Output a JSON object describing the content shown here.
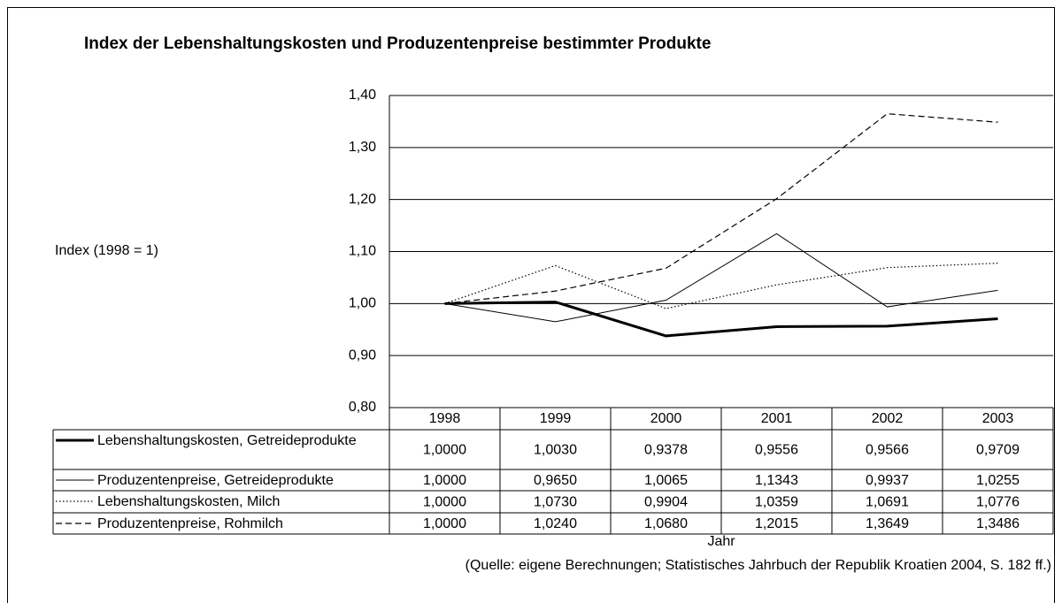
{
  "chart_data": {
    "type": "line",
    "title": "Index der Lebenshaltungskosten und Produzentenpreise bestimmter Produkte",
    "y_label": "Index (1998 = 1)",
    "x_label": "Jahr",
    "source": "(Quelle: eigene Berechnungen; Statistisches Jahrbuch der Republik Kroatien 2004, S. 182 ff.)",
    "categories": [
      "1998",
      "1999",
      "2000",
      "2001",
      "2002",
      "2003"
    ],
    "ylim": [
      0.8,
      1.4
    ],
    "yticks": [
      {
        "value": 0.8,
        "label": "0,80"
      },
      {
        "value": 0.9,
        "label": "0,90"
      },
      {
        "value": 1.0,
        "label": "1,00"
      },
      {
        "value": 1.1,
        "label": "1,10"
      },
      {
        "value": 1.2,
        "label": "1,20"
      },
      {
        "value": 1.3,
        "label": "1,30"
      },
      {
        "value": 1.4,
        "label": "1,40"
      }
    ],
    "grid": true,
    "data_table": true,
    "series": [
      {
        "name": "Lebenshaltungskosten, Getreideprodukte",
        "color": "#000000",
        "line_style": "solid",
        "line_width": 3,
        "values": [
          1.0,
          1.003,
          0.9378,
          0.9556,
          0.9566,
          0.9709
        ],
        "value_labels": [
          "1,0000",
          "1,0030",
          "0,9378",
          "0,9556",
          "0,9566",
          "0,9709"
        ]
      },
      {
        "name": "Produzentenpreise, Getreideprodukte",
        "color": "#000000",
        "line_style": "solid",
        "line_width": 1,
        "values": [
          1.0,
          0.965,
          1.0065,
          1.1343,
          0.9937,
          1.0255
        ],
        "value_labels": [
          "1,0000",
          "0,9650",
          "1,0065",
          "1,1343",
          "0,9937",
          "1,0255"
        ]
      },
      {
        "name": "Lebenshaltungskosten, Milch",
        "color": "#000000",
        "line_style": "dotted",
        "line_width": 1.2,
        "values": [
          1.0,
          1.073,
          0.9904,
          1.0359,
          1.0691,
          1.0776
        ],
        "value_labels": [
          "1,0000",
          "1,0730",
          "0,9904",
          "1,0359",
          "1,0691",
          "1,0776"
        ]
      },
      {
        "name": "Produzentenpreise, Rohmilch",
        "color": "#000000",
        "line_style": "dashed",
        "line_width": 1.2,
        "values": [
          1.0,
          1.024,
          1.068,
          1.2015,
          1.3649,
          1.3486
        ],
        "value_labels": [
          "1,0000",
          "1,0240",
          "1,0680",
          "1,2015",
          "1,3649",
          "1,3486"
        ]
      }
    ]
  }
}
